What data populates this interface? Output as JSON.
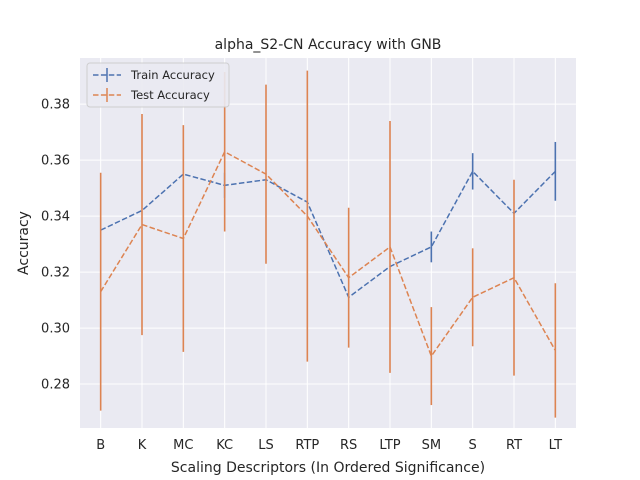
{
  "chart_data": {
    "type": "line",
    "title": "alpha_S2-CN Accuracy with GNB",
    "xlabel": "Scaling Descriptors (In Ordered Significance)",
    "ylabel": "Accuracy",
    "categories": [
      "B",
      "K",
      "MC",
      "KC",
      "LS",
      "RTP",
      "RS",
      "LTP",
      "SM",
      "S",
      "RT",
      "LT"
    ],
    "ylim": [
      0.2643,
      0.3965
    ],
    "yticks": [
      0.28,
      0.3,
      0.32,
      0.34,
      0.36,
      0.38
    ],
    "ytick_labels": [
      "0.28",
      "0.30",
      "0.32",
      "0.34",
      "0.36",
      "0.38"
    ],
    "grid": true,
    "legend_position": "top-left",
    "series": [
      {
        "name": "Train Accuracy",
        "color": "#4c72b0",
        "values": [
          0.335,
          0.342,
          0.355,
          0.351,
          0.353,
          0.345,
          0.311,
          0.322,
          0.329,
          0.356,
          0.341,
          0.356
        ],
        "errors": [
          0.0,
          0.0,
          0.0,
          0.0045,
          0.0,
          0.0,
          0.0,
          0.0,
          0.0055,
          0.0065,
          0.0,
          0.0105
        ]
      },
      {
        "name": "Test Accuracy",
        "color": "#dd8452",
        "values": [
          0.313,
          0.337,
          0.332,
          0.363,
          0.355,
          0.34,
          0.318,
          0.329,
          0.29,
          0.311,
          0.318,
          0.292
        ],
        "errors": [
          0.0425,
          0.0395,
          0.0405,
          0.0285,
          0.032,
          0.052,
          0.025,
          0.045,
          0.0175,
          0.0175,
          0.035,
          0.024
        ]
      }
    ]
  }
}
